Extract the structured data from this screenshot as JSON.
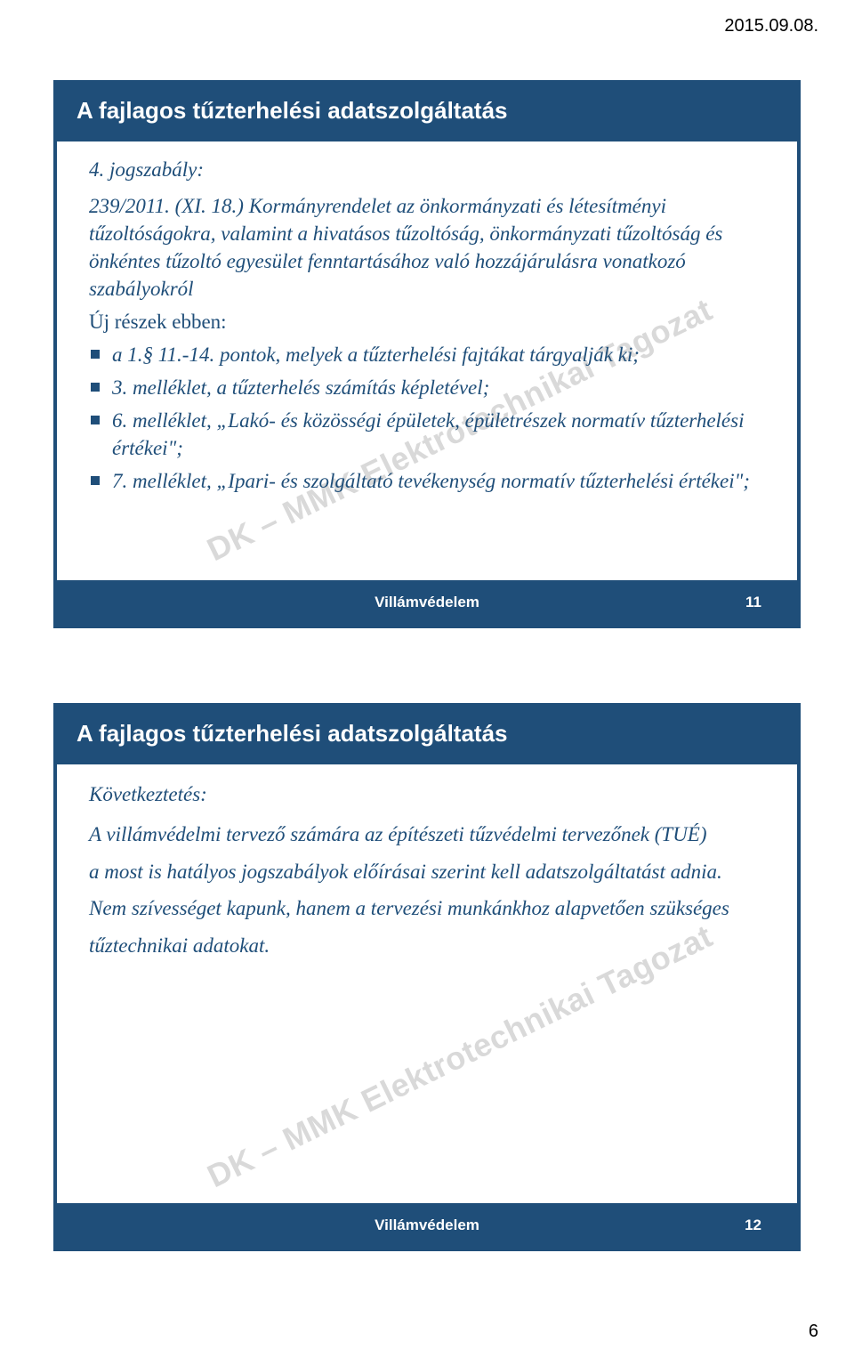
{
  "dateHeader": "2015.09.08.",
  "pageNumber": "6",
  "watermark": "DK – MMK Elektrotechnikai Tagozat",
  "slide1": {
    "title": "A fajlagos tűzterhelési adatszolgáltatás",
    "subtitle": "4. jogszabály:",
    "lead": "239/2011. (XI. 18.) Kormányrendelet az önkormányzati és létesítményi tűzoltóságokra, valamint a hivatásos tűzoltóság, önkormányzati tűzoltóság és önkéntes tűzoltó egyesület fenntartásához való hozzájárulásra vonatkozó szabályokról",
    "newParts": "Új részek ebben:",
    "bullets": [
      "a 1.§ 11.-14. pontok, melyek a tűzterhelési fajtákat tárgyalják ki;",
      "3. melléklet, a tűzterhelés számítás képletével;",
      "6. melléklet, „Lakó- és közösségi épületek, épületrészek normatív tűzterhelési értékei\";",
      "7. melléklet, „Ipari- és szolgáltató tevékenység normatív tűzterhelési értékei\";"
    ],
    "footerLabel": "Villámvédelem",
    "footerNum": "11"
  },
  "slide2": {
    "title": "A fajlagos tűzterhelési adatszolgáltatás",
    "subtitle": "Következtetés:",
    "p1": "A villámvédelmi tervező számára az építészeti tűzvédelmi tervezőnek (TUÉ)",
    "p2": "a most is hatályos jogszabályok előírásai szerint kell adatszolgáltatást adnia.",
    "p3": "Nem szívességet kapunk, hanem a tervezési munkánkhoz alapvetően szükséges",
    "p4": "tűztechnikai adatokat.",
    "footerLabel": "Villámvédelem",
    "footerNum": "12"
  },
  "colors": {
    "brand": "#1f4e79",
    "watermark": "#d9d9d9",
    "pageBg": "#ffffff"
  }
}
